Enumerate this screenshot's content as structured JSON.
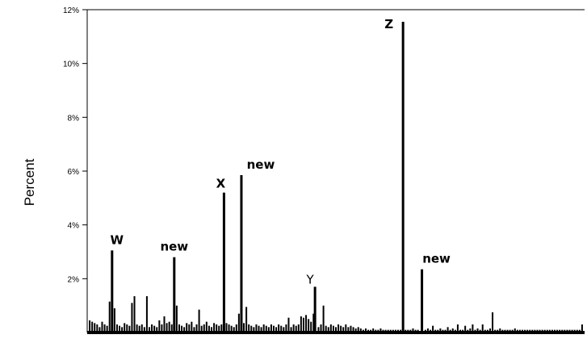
{
  "chart_data": {
    "type": "bar",
    "ylabel": "Percent",
    "ylim": [
      0,
      12
    ],
    "y_tick_labels": [
      "2%",
      "4%",
      "6%",
      "8%",
      "10%",
      "12%"
    ],
    "y_tick_values": [
      2,
      4,
      6,
      8,
      10,
      12
    ],
    "peaks": [
      {
        "label": "W",
        "x": 5,
        "value": 3.05
      },
      {
        "label": "new",
        "x": 17.5,
        "value": 2.8
      },
      {
        "label": "X",
        "x": 27.5,
        "value": 5.2
      },
      {
        "label": "new",
        "x": 31,
        "value": 5.85
      },
      {
        "label": "Y",
        "x": 45.8,
        "value": 1.7
      },
      {
        "label": "Z",
        "x": 63.5,
        "value": 11.55
      },
      {
        "label": "new",
        "x": 67.3,
        "value": 2.35
      }
    ],
    "background_bars": [
      [
        0.5,
        0.45
      ],
      [
        1,
        0.4
      ],
      [
        1.5,
        0.35
      ],
      [
        2,
        0.3
      ],
      [
        2.5,
        0.2
      ],
      [
        3,
        0.4
      ],
      [
        3.5,
        0.3
      ],
      [
        4,
        0.25
      ],
      [
        4.5,
        1.15
      ],
      [
        5.5,
        0.9
      ],
      [
        6,
        0.3
      ],
      [
        6.5,
        0.25
      ],
      [
        7,
        0.2
      ],
      [
        7.5,
        0.35
      ],
      [
        8,
        0.3
      ],
      [
        8.5,
        0.25
      ],
      [
        9,
        1.1
      ],
      [
        9.5,
        1.35
      ],
      [
        10,
        0.3
      ],
      [
        10.5,
        0.25
      ],
      [
        11,
        0.3
      ],
      [
        11.5,
        0.2
      ],
      [
        12,
        1.35
      ],
      [
        12.5,
        0.2
      ],
      [
        13,
        0.3
      ],
      [
        13.5,
        0.25
      ],
      [
        14,
        0.2
      ],
      [
        14.5,
        0.45
      ],
      [
        15,
        0.3
      ],
      [
        15.5,
        0.6
      ],
      [
        16,
        0.35
      ],
      [
        16.5,
        0.4
      ],
      [
        17,
        0.3
      ],
      [
        18,
        1.0
      ],
      [
        18.5,
        0.3
      ],
      [
        19,
        0.25
      ],
      [
        19.5,
        0.2
      ],
      [
        20,
        0.35
      ],
      [
        20.5,
        0.3
      ],
      [
        21,
        0.4
      ],
      [
        21.5,
        0.2
      ],
      [
        22,
        0.3
      ],
      [
        22.5,
        0.85
      ],
      [
        23,
        0.25
      ],
      [
        23.5,
        0.3
      ],
      [
        24,
        0.4
      ],
      [
        24.5,
        0.25
      ],
      [
        25,
        0.2
      ],
      [
        25.5,
        0.35
      ],
      [
        26,
        0.3
      ],
      [
        26.5,
        0.25
      ],
      [
        27,
        0.3
      ],
      [
        28,
        0.35
      ],
      [
        28.5,
        0.3
      ],
      [
        29,
        0.25
      ],
      [
        29.5,
        0.2
      ],
      [
        30,
        0.3
      ],
      [
        30.5,
        0.7
      ],
      [
        31.5,
        0.35
      ],
      [
        32,
        0.95
      ],
      [
        32.5,
        0.3
      ],
      [
        33,
        0.25
      ],
      [
        33.5,
        0.2
      ],
      [
        34,
        0.3
      ],
      [
        34.5,
        0.25
      ],
      [
        35,
        0.2
      ],
      [
        35.5,
        0.3
      ],
      [
        36,
        0.25
      ],
      [
        36.5,
        0.2
      ],
      [
        37,
        0.3
      ],
      [
        37.5,
        0.25
      ],
      [
        38,
        0.2
      ],
      [
        38.5,
        0.3
      ],
      [
        39,
        0.25
      ],
      [
        39.5,
        0.2
      ],
      [
        40,
        0.3
      ],
      [
        40.5,
        0.55
      ],
      [
        41,
        0.2
      ],
      [
        41.5,
        0.3
      ],
      [
        42,
        0.25
      ],
      [
        42.5,
        0.3
      ],
      [
        43,
        0.6
      ],
      [
        43.5,
        0.55
      ],
      [
        44,
        0.65
      ],
      [
        44.5,
        0.5
      ],
      [
        45,
        0.4
      ],
      [
        45.5,
        0.7
      ],
      [
        46.5,
        0.2
      ],
      [
        47,
        0.3
      ],
      [
        47.5,
        1.0
      ],
      [
        48,
        0.25
      ],
      [
        48.5,
        0.2
      ],
      [
        49,
        0.3
      ],
      [
        49.5,
        0.25
      ],
      [
        50,
        0.2
      ],
      [
        50.5,
        0.3
      ],
      [
        51,
        0.25
      ],
      [
        51.5,
        0.2
      ],
      [
        52,
        0.3
      ],
      [
        52.5,
        0.2
      ],
      [
        53,
        0.25
      ],
      [
        53.5,
        0.2
      ],
      [
        54,
        0.15
      ],
      [
        54.5,
        0.2
      ],
      [
        55,
        0.15
      ],
      [
        55.5,
        0.1
      ],
      [
        56,
        0.15
      ],
      [
        56.5,
        0.1
      ],
      [
        57,
        0.1
      ],
      [
        57.5,
        0.15
      ],
      [
        58,
        0.1
      ],
      [
        58.5,
        0.1
      ],
      [
        59,
        0.15
      ],
      [
        59.5,
        0.1
      ],
      [
        60,
        0.1
      ],
      [
        60.5,
        0.1
      ],
      [
        61,
        0.1
      ],
      [
        61.5,
        0.1
      ],
      [
        62,
        0.1
      ],
      [
        62.5,
        0.1
      ],
      [
        63,
        0.1
      ],
      [
        64,
        0.1
      ],
      [
        64.5,
        0.1
      ],
      [
        65,
        0.1
      ],
      [
        65.5,
        0.15
      ],
      [
        66,
        0.1
      ],
      [
        66.5,
        0.1
      ],
      [
        68,
        0.1
      ],
      [
        68.5,
        0.15
      ],
      [
        69,
        0.1
      ],
      [
        69.5,
        0.25
      ],
      [
        70,
        0.1
      ],
      [
        70.5,
        0.1
      ],
      [
        71,
        0.15
      ],
      [
        71.5,
        0.1
      ],
      [
        72,
        0.1
      ],
      [
        72.5,
        0.2
      ],
      [
        73,
        0.1
      ],
      [
        73.5,
        0.15
      ],
      [
        74,
        0.1
      ],
      [
        74.5,
        0.3
      ],
      [
        75,
        0.1
      ],
      [
        75.5,
        0.1
      ],
      [
        76,
        0.25
      ],
      [
        76.5,
        0.1
      ],
      [
        77,
        0.15
      ],
      [
        77.5,
        0.3
      ],
      [
        78,
        0.1
      ],
      [
        78.5,
        0.15
      ],
      [
        79,
        0.1
      ],
      [
        79.5,
        0.3
      ],
      [
        80,
        0.1
      ],
      [
        80.5,
        0.1
      ],
      [
        81,
        0.15
      ],
      [
        81.5,
        0.75
      ],
      [
        82,
        0.1
      ],
      [
        82.5,
        0.1
      ],
      [
        83,
        0.15
      ],
      [
        83.5,
        0.1
      ],
      [
        84,
        0.1
      ],
      [
        84.5,
        0.1
      ],
      [
        85,
        0.1
      ],
      [
        85.5,
        0.1
      ],
      [
        86,
        0.15
      ],
      [
        86.5,
        0.1
      ],
      [
        87,
        0.1
      ],
      [
        87.5,
        0.1
      ],
      [
        88,
        0.1
      ],
      [
        88.5,
        0.1
      ],
      [
        89,
        0.1
      ],
      [
        89.5,
        0.1
      ],
      [
        90,
        0.1
      ],
      [
        90.5,
        0.1
      ],
      [
        91,
        0.1
      ],
      [
        91.5,
        0.1
      ],
      [
        92,
        0.1
      ],
      [
        92.5,
        0.1
      ],
      [
        93,
        0.1
      ],
      [
        93.5,
        0.1
      ],
      [
        94,
        0.1
      ],
      [
        94.5,
        0.1
      ],
      [
        95,
        0.1
      ],
      [
        95.5,
        0.1
      ],
      [
        96,
        0.1
      ],
      [
        96.5,
        0.1
      ],
      [
        97,
        0.1
      ],
      [
        97.5,
        0.1
      ],
      [
        98,
        0.1
      ],
      [
        98.5,
        0.1
      ],
      [
        99,
        0.1
      ],
      [
        99.5,
        0.3
      ]
    ],
    "grid": false,
    "legend": "none",
    "color": "#000000"
  }
}
